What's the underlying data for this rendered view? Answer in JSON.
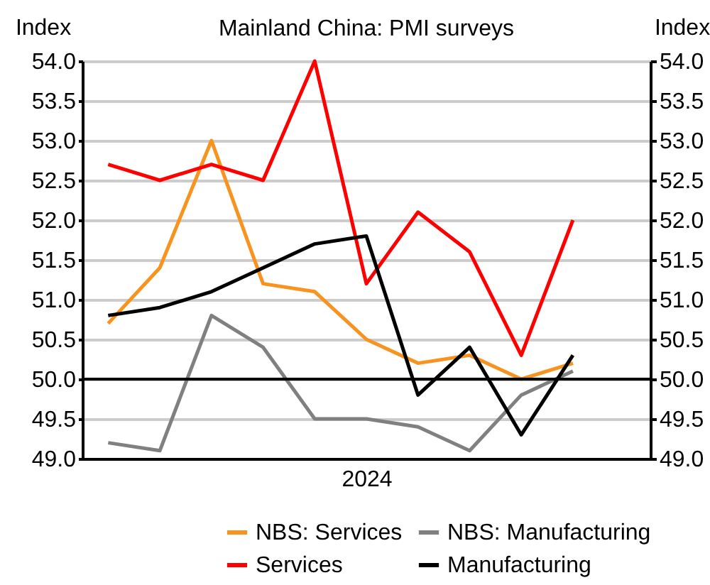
{
  "chart_data": {
    "type": "line",
    "title": "Mainland China: PMI surveys",
    "ylabel": "Index",
    "y2label": "Index",
    "categories": [
      null,
      null,
      null,
      null,
      null,
      "2024",
      null,
      null,
      null,
      null,
      null
    ],
    "series": [
      {
        "name": "NBS: Services",
        "color": "#f7931e",
        "values": [
          50.7,
          51.4,
          53.0,
          51.2,
          51.1,
          50.5,
          50.2,
          50.3,
          50.0,
          50.2,
          null
        ]
      },
      {
        "name": "NBS: Manufacturing",
        "color": "#808080",
        "values": [
          49.2,
          49.1,
          50.8,
          50.4,
          49.5,
          49.5,
          49.4,
          49.1,
          49.8,
          50.1,
          null
        ]
      },
      {
        "name": "Services",
        "color": "#ff0000",
        "values": [
          52.7,
          52.5,
          52.7,
          52.5,
          54.0,
          51.2,
          52.1,
          51.6,
          50.3,
          52.0,
          null
        ]
      },
      {
        "name": "Manufacturing",
        "color": "#000000",
        "values": [
          50.8,
          50.9,
          51.1,
          51.4,
          51.7,
          51.8,
          49.8,
          50.4,
          49.3,
          50.3,
          null
        ]
      }
    ],
    "ylim": [
      49.0,
      54.0
    ],
    "yticks": [
      {
        "value": 49,
        "label": "49.0"
      },
      {
        "value": 49.5,
        "label": "49.5"
      },
      {
        "value": 50,
        "label": "50.0"
      },
      {
        "value": 50.5,
        "label": "50.5"
      },
      {
        "value": 51,
        "label": "51.0"
      },
      {
        "value": 51.5,
        "label": "51.5"
      },
      {
        "value": 52,
        "label": "52.0"
      },
      {
        "value": 52.5,
        "label": "52.5"
      },
      {
        "value": 53,
        "label": "53.0"
      },
      {
        "value": 53.5,
        "label": "53.5"
      },
      {
        "value": 54,
        "label": "54.0"
      }
    ],
    "y2lim": [
      49.0,
      54.0
    ],
    "y2ticks": [
      {
        "value": 49,
        "label": "49.0"
      },
      {
        "value": 49.5,
        "label": "49.5"
      },
      {
        "value": 50,
        "label": "50.0"
      },
      {
        "value": 50.5,
        "label": "50.5"
      },
      {
        "value": 51,
        "label": "51.0"
      },
      {
        "value": 51.5,
        "label": "51.5"
      },
      {
        "value": 52,
        "label": "52.0"
      },
      {
        "value": 52.5,
        "label": "52.5"
      },
      {
        "value": 53,
        "label": "53.0"
      },
      {
        "value": 53.5,
        "label": "53.5"
      },
      {
        "value": 54,
        "label": "54.0"
      }
    ],
    "ref_lines": [
      {
        "axis": "y",
        "value": 50,
        "color": "#000000"
      }
    ],
    "grid": "y",
    "legend": "bottom",
    "marker": "none",
    "line_style": "solid"
  }
}
